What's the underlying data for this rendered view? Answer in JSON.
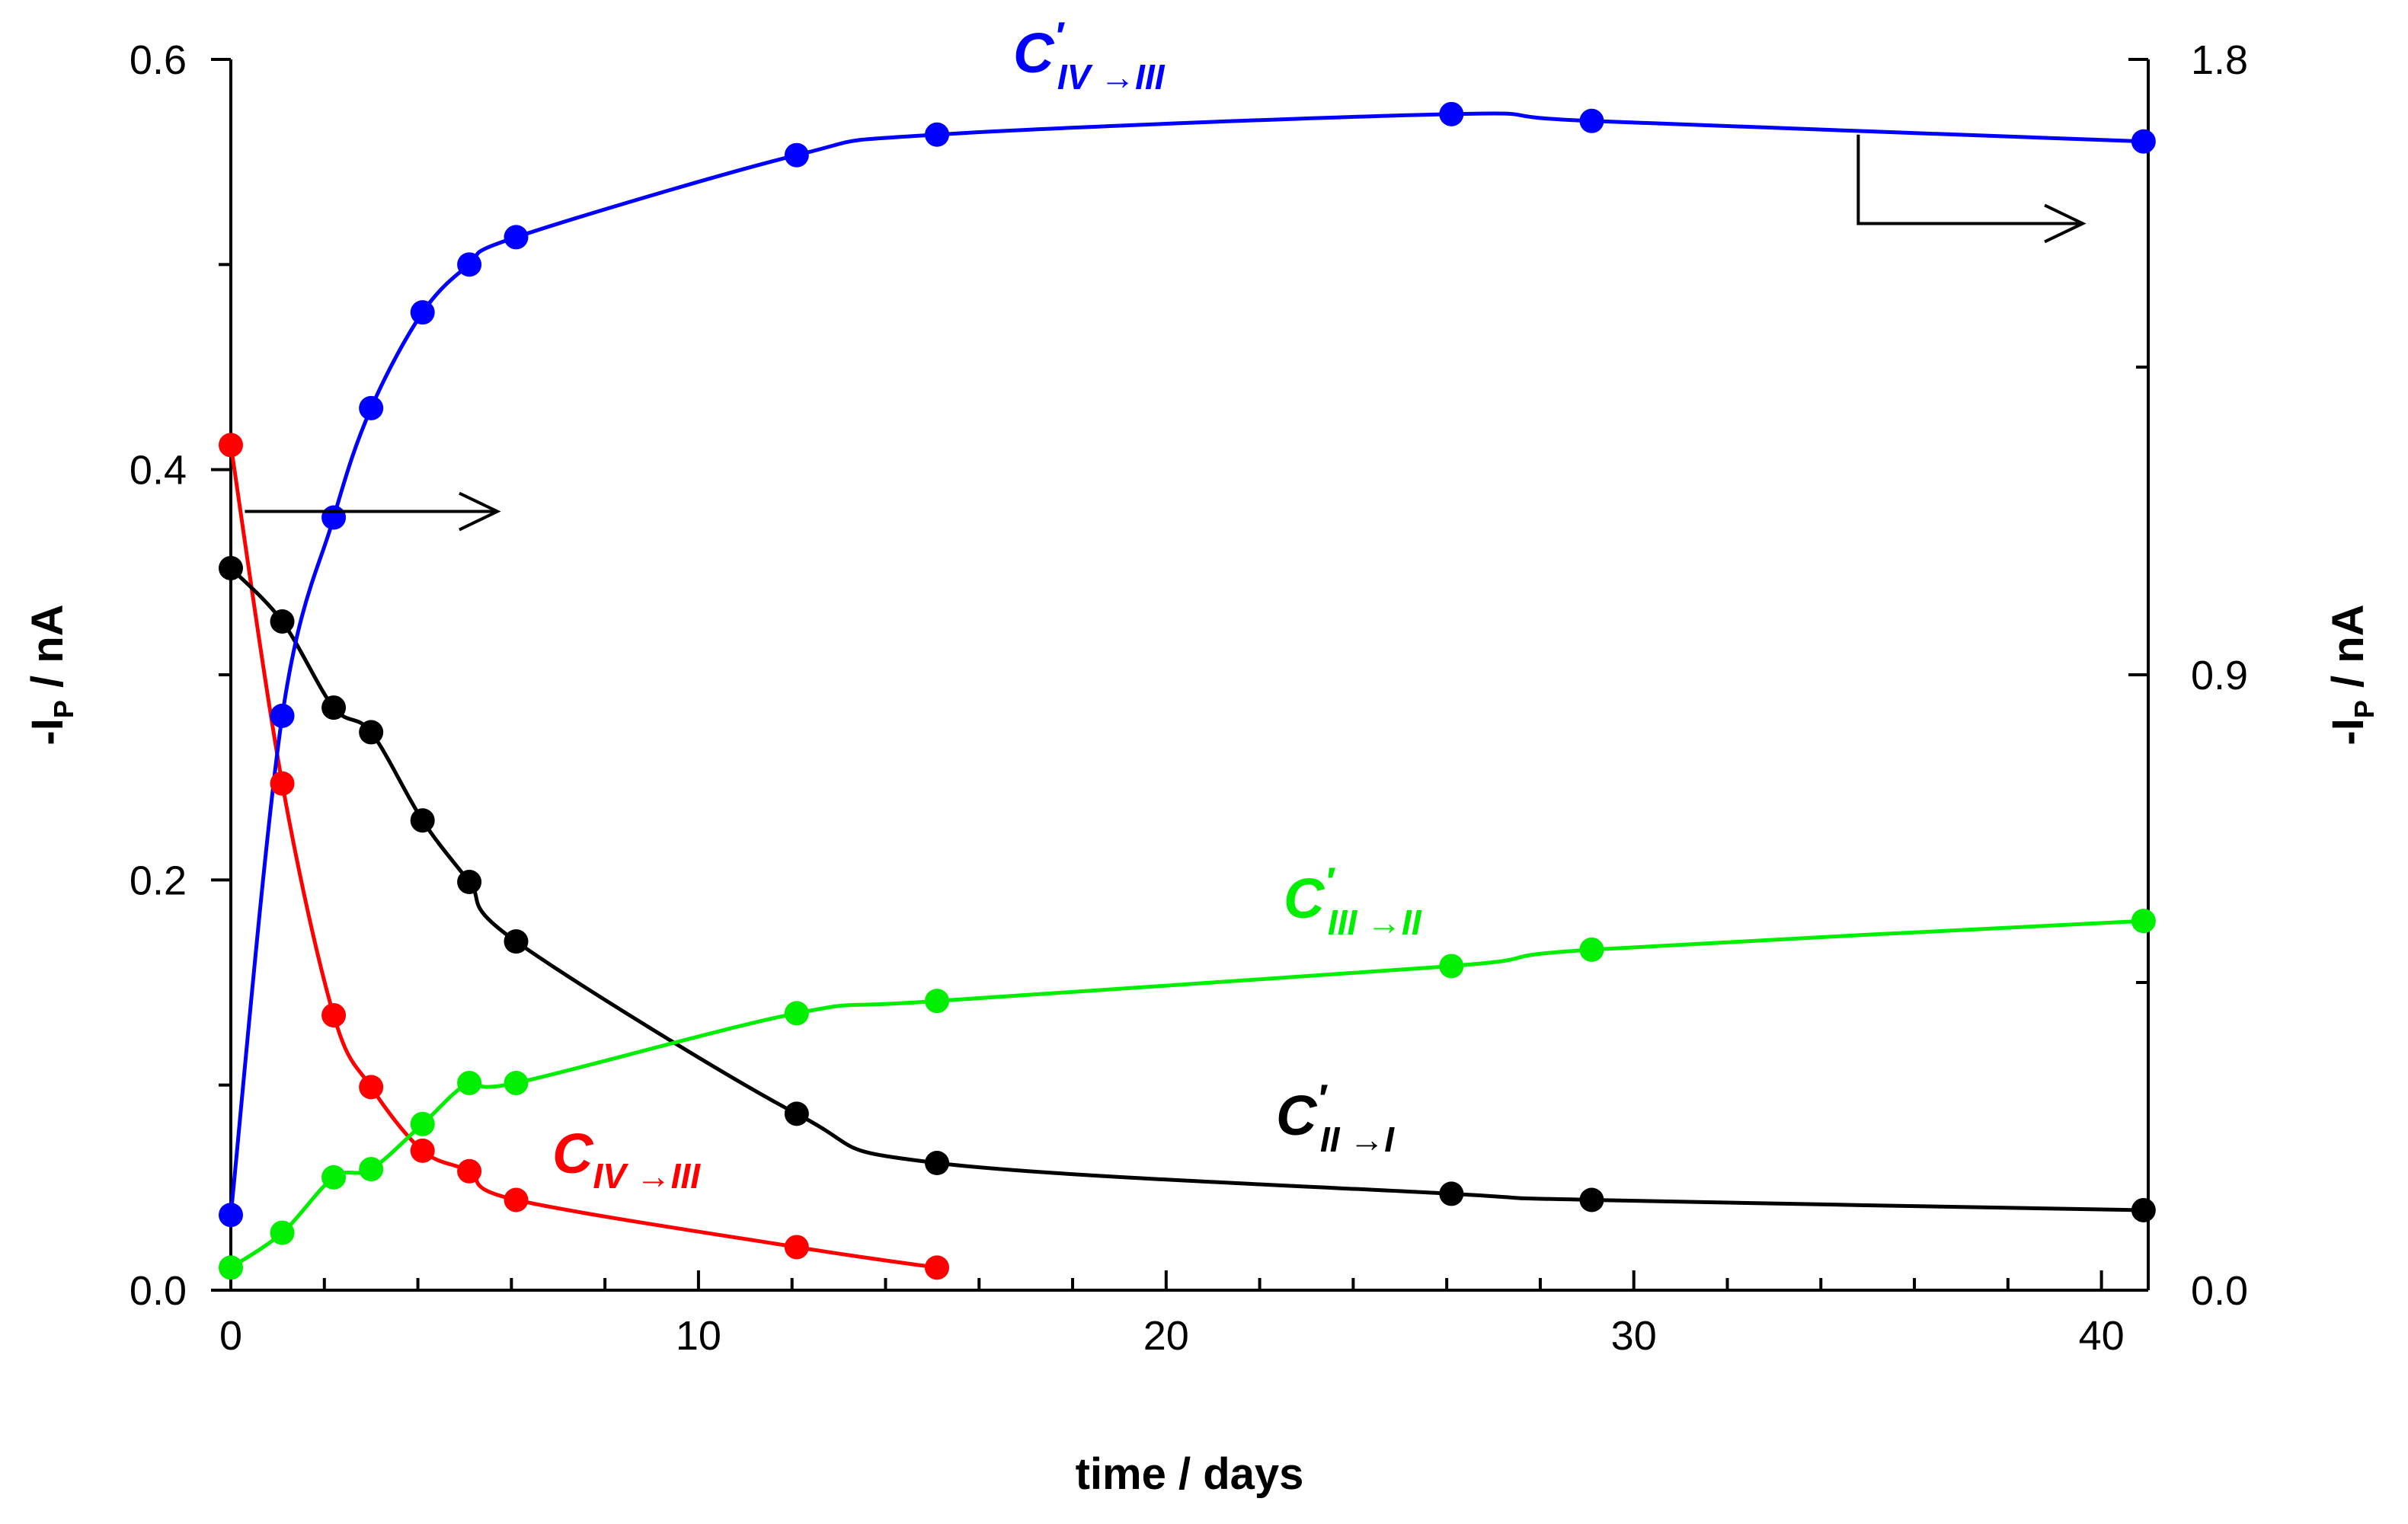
{
  "chart_data": {
    "type": "line",
    "xlabel": "time / days",
    "ylabel_left": {
      "main": "-I",
      "sub": "P",
      "unit": " / nA"
    },
    "ylabel_right": {
      "main": "-I",
      "sub": "P",
      "unit": " / nA"
    },
    "xlim": [
      0,
      41
    ],
    "ylim_left": [
      0,
      0.6
    ],
    "ylim_right": [
      0,
      1.8
    ],
    "x_ticks": [
      0,
      10,
      20,
      30,
      40
    ],
    "x_tick_labels": [
      "0",
      "10",
      "20",
      "30",
      "40"
    ],
    "y_left_ticks": [
      0,
      0.2,
      0.4,
      0.6
    ],
    "y_left_tick_labels": [
      "0.0",
      "0.2",
      "0.4",
      "0.6"
    ],
    "y_right_ticks": [
      0,
      0.9,
      1.8
    ],
    "y_right_tick_labels": [
      "0.0",
      "0.9",
      "1.8"
    ],
    "series": [
      {
        "name": "C_IV→III",
        "label_main": "C",
        "label_prime": "",
        "label_sub": "IV →III",
        "color": "#ff0000",
        "axis": "left",
        "x": [
          0,
          1.1,
          2.2,
          3.0,
          4.1,
          5.1,
          6.1,
          12.1,
          15.1
        ],
        "y": [
          0.412,
          0.247,
          0.134,
          0.099,
          0.068,
          0.058,
          0.044,
          0.021,
          0.011
        ]
      },
      {
        "name": "C'_II→I",
        "label_main": "C",
        "label_prime": "′",
        "label_sub": "II →I",
        "color": "#000000",
        "axis": "left",
        "x": [
          0,
          1.1,
          2.2,
          3.0,
          4.1,
          5.1,
          6.1,
          12.1,
          15.1,
          26.1,
          29.1,
          40.9
        ],
        "y": [
          0.352,
          0.326,
          0.284,
          0.272,
          0.229,
          0.199,
          0.17,
          0.086,
          0.062,
          0.047,
          0.044,
          0.039
        ]
      },
      {
        "name": "C'_III→II",
        "label_main": "C",
        "label_prime": "′",
        "label_sub": "III →II",
        "color": "#00ee00",
        "axis": "left",
        "x": [
          0,
          1.1,
          2.2,
          3.0,
          4.1,
          5.1,
          6.1,
          12.1,
          15.1,
          26.1,
          29.1,
          40.9
        ],
        "y": [
          0.011,
          0.028,
          0.055,
          0.059,
          0.081,
          0.101,
          0.101,
          0.135,
          0.141,
          0.158,
          0.166,
          0.18
        ]
      },
      {
        "name": "C'_IV→III",
        "label_main": "C",
        "label_prime": "′",
        "label_sub": "IV →III",
        "color": "#0000ff",
        "axis": "right",
        "x": [
          0,
          1.1,
          2.2,
          3.0,
          4.1,
          5.1,
          6.1,
          12.1,
          15.1,
          26.1,
          29.1,
          40.9
        ],
        "y": [
          0.11,
          0.84,
          1.13,
          1.29,
          1.43,
          1.5,
          1.54,
          1.66,
          1.69,
          1.72,
          1.71,
          1.68
        ]
      }
    ],
    "annotations": [
      {
        "type": "arrow",
        "points_to": "right axis",
        "series": "C'_IV→III"
      },
      {
        "type": "arrow",
        "points_to": "right axis",
        "series": "C'_IV→III"
      }
    ]
  }
}
